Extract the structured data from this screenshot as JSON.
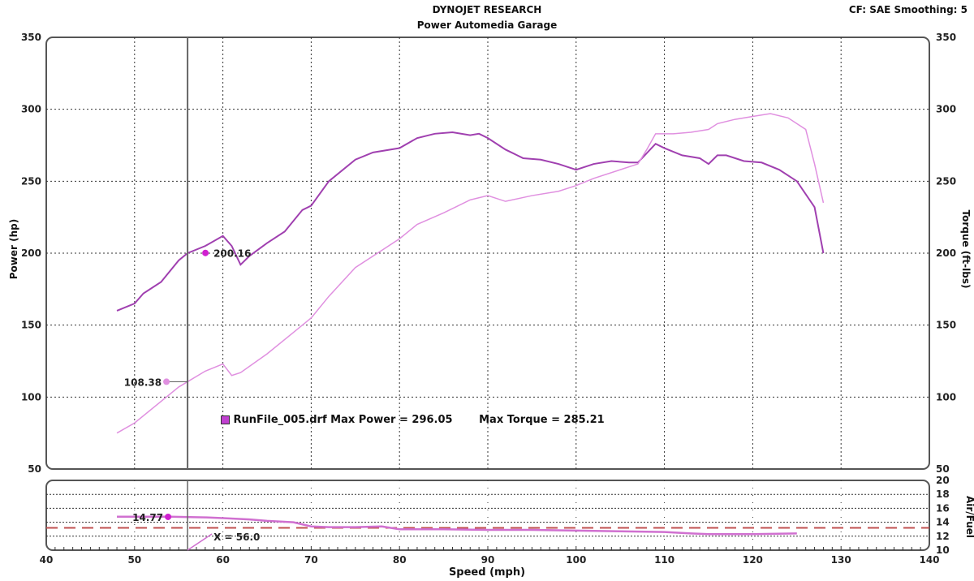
{
  "header": {
    "title": "DYNOJET RESEARCH",
    "subtitle": "Power Automedia Garage",
    "settings": "CF: SAE  Smoothing: 5"
  },
  "chart_data": [
    {
      "type": "line",
      "xlabel": "",
      "ylabel": "Power (hp)",
      "y2label": "Torque (ft-lbs)",
      "xlim": [
        40,
        140
      ],
      "ylim": [
        50,
        350
      ],
      "y2lim": [
        50,
        350
      ],
      "yticks": [
        "50",
        "100",
        "150",
        "200",
        "250",
        "300",
        "350"
      ],
      "grid": true,
      "cursor_x": 56,
      "legend": {
        "run_file": "RunFile_005.drf",
        "max_power_label": "Max Power = 296.05",
        "max_torque_label": "Max Torque = 285.21",
        "placement": "center-bottom"
      },
      "series": [
        {
          "color": "#a040b0",
          "cursor_value": "200.16",
          "x": [
            48,
            50,
            51,
            53,
            55,
            56,
            58,
            60,
            61,
            62,
            63,
            65,
            67,
            69,
            70,
            72,
            75,
            77,
            80,
            82,
            84,
            86,
            88,
            89,
            90,
            92,
            94,
            96,
            98,
            100,
            102,
            104,
            106,
            107,
            109,
            110,
            112,
            114,
            115,
            116,
            117,
            119,
            121,
            123,
            125,
            127,
            128
          ],
          "y": [
            160,
            165,
            172,
            180,
            195,
            200,
            205,
            212,
            205,
            192,
            198,
            207,
            215,
            230,
            233,
            250,
            265,
            270,
            273,
            280,
            283,
            284,
            282,
            283,
            280,
            272,
            266,
            265,
            262,
            258,
            262,
            264,
            263,
            263,
            276,
            273,
            268,
            266,
            262,
            268,
            268,
            264,
            263,
            258,
            250,
            232,
            200
          ]
        },
        {
          "color": "#e090e0",
          "cursor_value": "108.38",
          "x": [
            48,
            50,
            55,
            58,
            60,
            61,
            62,
            65,
            68,
            70,
            72,
            75,
            78,
            80,
            82,
            85,
            88,
            90,
            92,
            95,
            98,
            100,
            102,
            105,
            107,
            108,
            109,
            111,
            113,
            115,
            116,
            118,
            120,
            122,
            124,
            126,
            127,
            128
          ],
          "y": [
            75,
            82,
            107,
            118,
            123,
            115,
            117,
            130,
            145,
            155,
            170,
            190,
            202,
            210,
            220,
            228,
            237,
            240,
            236,
            240,
            243,
            247,
            252,
            258,
            262,
            272,
            283,
            283,
            284,
            286,
            290,
            293,
            295,
            297,
            294,
            286,
            262,
            235
          ]
        }
      ]
    },
    {
      "type": "line",
      "xlabel": "Speed (mph)",
      "ylabel": "Air/Fuel",
      "xlim": [
        40,
        140
      ],
      "ylim": [
        10,
        20
      ],
      "xticks": [
        "40",
        "50",
        "60",
        "70",
        "80",
        "90",
        "100",
        "110",
        "120",
        "130",
        "140"
      ],
      "yticks": [
        "10",
        "12",
        "14",
        "16",
        "18",
        "20"
      ],
      "grid": true,
      "reference_line": 13.2,
      "reference_color": "#c05050",
      "cursor_x": 56,
      "cursor_label": "X = 56.0",
      "series": [
        {
          "color": "#d070d0",
          "cursor_value": "14.77",
          "x": [
            48,
            54,
            58,
            60,
            63,
            65,
            68,
            70,
            72,
            75,
            78,
            80,
            85,
            90,
            95,
            100,
            105,
            110,
            113,
            115,
            120,
            125
          ],
          "y": [
            14.8,
            14.8,
            14.7,
            14.6,
            14.4,
            14.2,
            14.0,
            13.4,
            13.3,
            13.3,
            13.4,
            13.0,
            13.0,
            12.9,
            12.9,
            12.8,
            12.7,
            12.6,
            12.4,
            12.3,
            12.3,
            12.4
          ]
        }
      ]
    }
  ]
}
